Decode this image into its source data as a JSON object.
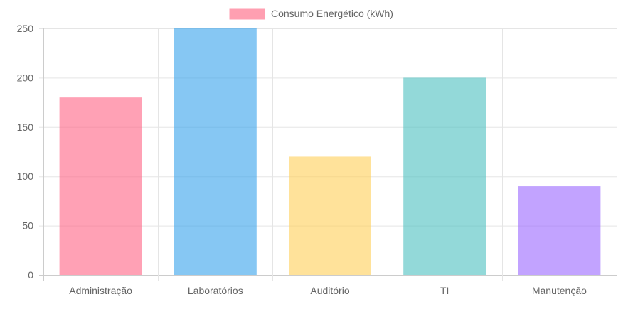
{
  "chart_data": {
    "type": "bar",
    "title": "",
    "xlabel": "",
    "ylabel": "",
    "categories": [
      "Administração",
      "Laboratórios",
      "Auditório",
      "TI",
      "Manutenção"
    ],
    "series": [
      {
        "name": "Consumo Energético (kWh)",
        "values": [
          180,
          250,
          120,
          200,
          90
        ]
      }
    ],
    "ylim": [
      0,
      250
    ],
    "yticks": [
      0,
      50,
      100,
      150,
      200,
      250
    ],
    "grid": true,
    "legend_position": "top-center",
    "colors": {
      "bars_fill": [
        "#ff6384",
        "#36a2eb",
        "#ffce56",
        "#4bc0c0",
        "#9966ff"
      ],
      "legend_swatch": "#ff9fb1",
      "grid": "#e5e5e5",
      "text": "#666666"
    }
  }
}
